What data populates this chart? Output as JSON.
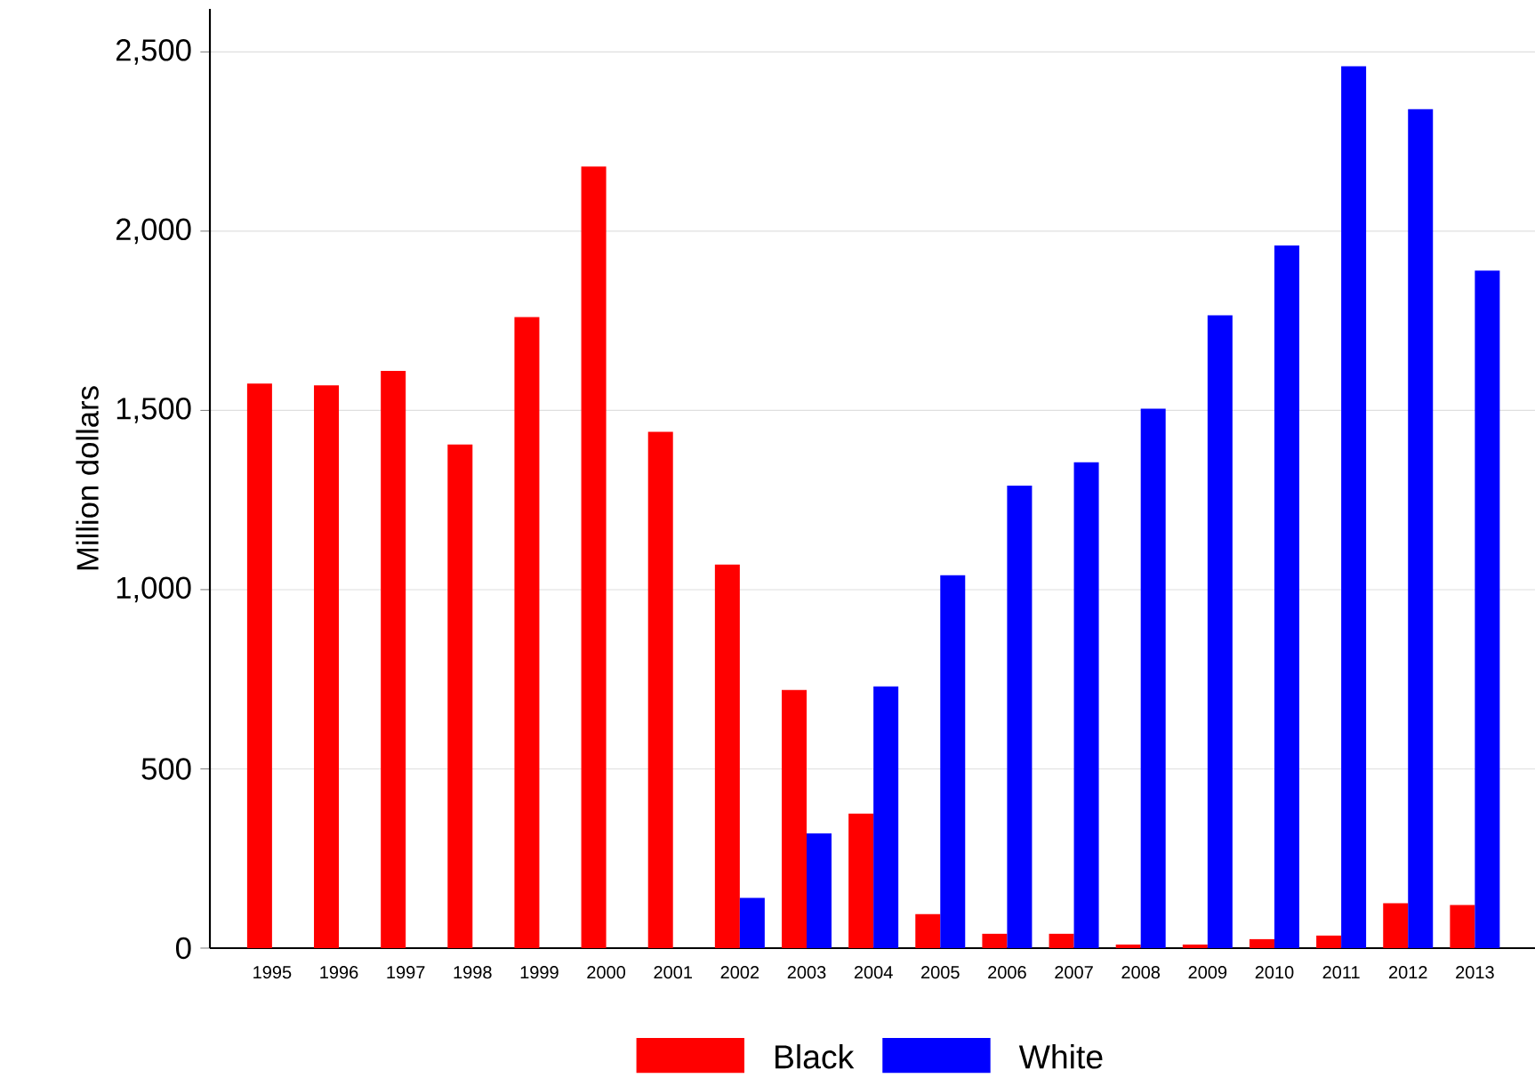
{
  "chart_data": {
    "type": "bar",
    "ylabel": "Million dollars",
    "categories": [
      "1995",
      "1996",
      "1997",
      "1998",
      "1999",
      "2000",
      "2001",
      "2002",
      "2003",
      "2004",
      "2005",
      "2006",
      "2007",
      "2008",
      "2009",
      "2010",
      "2011",
      "2012",
      "2013"
    ],
    "series": [
      {
        "name": "Black",
        "color": "#ff0000",
        "values": [
          1575,
          1570,
          1610,
          1405,
          1760,
          2180,
          1440,
          1070,
          720,
          375,
          95,
          40,
          40,
          10,
          10,
          25,
          35,
          125,
          120
        ]
      },
      {
        "name": "White",
        "color": "#0000ff",
        "values": [
          null,
          null,
          null,
          null,
          null,
          null,
          null,
          140,
          320,
          730,
          1040,
          1290,
          1355,
          1505,
          1765,
          1960,
          2460,
          2340,
          1890
        ]
      }
    ],
    "ylim": [
      0,
      2620
    ],
    "yticks": [
      {
        "value": 0,
        "label": "0"
      },
      {
        "value": 500,
        "label": "500"
      },
      {
        "value": 1000,
        "label": "1,000"
      },
      {
        "value": 1500,
        "label": "1,500"
      },
      {
        "value": 2000,
        "label": "2,000"
      },
      {
        "value": 2500,
        "label": "2,500"
      }
    ],
    "grid": "y",
    "legend": "bottom"
  }
}
